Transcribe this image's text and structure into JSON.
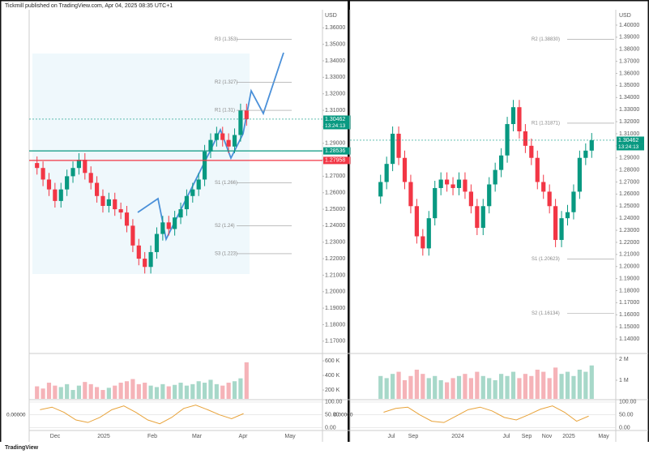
{
  "header": {
    "text": "Tickmill published on TradingView.com, Apr 04, 2025 08:35 UTC+1"
  },
  "footer": {
    "logo": "TradingView"
  },
  "chart_data": [
    {
      "type": "candlestick",
      "currency": "USD",
      "up_color": "#089981",
      "down_color": "#f23645",
      "open": [
        1.278,
        1.275,
        1.268,
        1.262,
        1.255,
        1.262,
        1.27,
        1.275,
        1.28,
        1.272,
        1.266,
        1.258,
        1.252,
        1.256,
        1.25,
        1.248,
        1.24,
        1.228,
        1.22,
        1.215,
        1.224,
        1.235,
        1.242,
        1.238,
        1.245,
        1.25,
        1.258,
        1.262,
        1.268,
        1.285,
        1.292,
        1.296,
        1.292,
        1.288,
        1.295,
        1.31
      ],
      "high": [
        1.282,
        1.279,
        1.272,
        1.266,
        1.266,
        1.274,
        1.279,
        1.284,
        1.284,
        1.276,
        1.27,
        1.262,
        1.26,
        1.26,
        1.254,
        1.252,
        1.244,
        1.232,
        1.224,
        1.228,
        1.239,
        1.246,
        1.246,
        1.249,
        1.254,
        1.262,
        1.266,
        1.272,
        1.289,
        1.296,
        1.3,
        1.3,
        1.296,
        1.299,
        1.314,
        1.314
      ],
      "low": [
        1.271,
        1.264,
        1.258,
        1.251,
        1.251,
        1.258,
        1.266,
        1.271,
        1.268,
        1.262,
        1.254,
        1.248,
        1.248,
        1.246,
        1.244,
        1.236,
        1.224,
        1.216,
        1.211,
        1.211,
        1.22,
        1.231,
        1.234,
        1.234,
        1.241,
        1.246,
        1.254,
        1.258,
        1.264,
        1.281,
        1.288,
        1.288,
        1.284,
        1.284,
        1.291,
        1.3006
      ],
      "close": [
        1.275,
        1.268,
        1.262,
        1.255,
        1.262,
        1.27,
        1.275,
        1.28,
        1.272,
        1.266,
        1.258,
        1.252,
        1.256,
        1.25,
        1.248,
        1.24,
        1.228,
        1.22,
        1.215,
        1.224,
        1.235,
        1.242,
        1.238,
        1.245,
        1.25,
        1.258,
        1.262,
        1.268,
        1.285,
        1.292,
        1.296,
        1.292,
        1.288,
        1.295,
        1.31,
        1.3046
      ],
      "ylim": [
        1.163,
        1.37
      ],
      "yticks": [
        {
          "value": 1.17,
          "label": "1.17000"
        },
        {
          "value": 1.18,
          "label": "1.18000"
        },
        {
          "value": 1.19,
          "label": "1.19000"
        },
        {
          "value": 1.2,
          "label": "1.20000"
        },
        {
          "value": 1.21,
          "label": "1.21000"
        },
        {
          "value": 1.22,
          "label": "1.22000"
        },
        {
          "value": 1.23,
          "label": "1.23000"
        },
        {
          "value": 1.24,
          "label": "1.24000"
        },
        {
          "value": 1.25,
          "label": "1.25000"
        },
        {
          "value": 1.26,
          "label": "1.26000"
        },
        {
          "value": 1.27,
          "label": "1.27000"
        },
        {
          "value": 1.28,
          "label": "1.28000"
        },
        {
          "value": 1.29,
          "label": "1.29000"
        },
        {
          "value": 1.3,
          "label": "1.30000"
        },
        {
          "value": 1.31,
          "label": "1.31000"
        },
        {
          "value": 1.32,
          "label": "1.32000"
        },
        {
          "value": 1.33,
          "label": "1.33000"
        },
        {
          "value": 1.34,
          "label": "1.34000"
        },
        {
          "value": 1.35,
          "label": "1.35000"
        },
        {
          "value": 1.36,
          "label": "1.36000"
        }
      ],
      "x_labels": [
        "Dec",
        "2025",
        "Feb",
        "Mar",
        "Apr",
        "May"
      ],
      "levels": [
        {
          "label": "R3 (1.353)",
          "value": 1.353
        },
        {
          "label": "R2 (1.327)",
          "value": 1.327
        },
        {
          "label": "R1 (1.31)",
          "value": 1.31
        },
        {
          "label": "S1 (1.266)",
          "value": 1.266
        },
        {
          "label": "S2 (1.24)",
          "value": 1.24
        },
        {
          "label": "S3 (1.223)",
          "value": 1.223
        }
      ],
      "price_tags": [
        {
          "value": 1.30462,
          "color": "#089981"
        },
        {
          "value": 1.28536,
          "color": "#089981"
        },
        {
          "value": 1.27958,
          "color": "#f23645"
        }
      ],
      "countdown": "13:24:13",
      "volume": {
        "values": [
          250000,
          220000,
          300000,
          260000,
          240000,
          280000,
          200000,
          260000,
          310000,
          280000,
          240000,
          200000,
          230000,
          260000,
          300000,
          320000,
          350000,
          280000,
          300000,
          260000,
          240000,
          280000,
          250000,
          270000,
          300000,
          260000,
          280000,
          320000,
          300000,
          340000,
          280000,
          260000,
          300000,
          320000,
          360000,
          580000
        ],
        "ylim": [
          78000,
          690000
        ],
        "yticks": [
          {
            "value": 200000,
            "label": "200 K"
          },
          {
            "value": 400000,
            "label": "400 K"
          },
          {
            "value": 600000,
            "label": "600 K"
          }
        ]
      },
      "oscillator": {
        "values": [
          70,
          80,
          60,
          30,
          20,
          40,
          70,
          85,
          60,
          30,
          15,
          40,
          75,
          88,
          70,
          50,
          35,
          55
        ],
        "color": "#e8a33a",
        "ylim": [
          -8,
          106
        ],
        "yticks": [
          {
            "value": 0,
            "label": "0.00"
          },
          {
            "value": 50,
            "label": "50.00"
          },
          {
            "value": 100,
            "label": "100.00"
          }
        ],
        "readout": "0.00000"
      }
    },
    {
      "type": "candlestick",
      "currency": "USD",
      "up_color": "#089981",
      "down_color": "#f23645",
      "open": [
        1.258,
        1.27,
        1.285,
        1.31,
        1.29,
        1.27,
        1.25,
        1.225,
        1.215,
        1.24,
        1.265,
        1.272,
        1.268,
        1.265,
        1.272,
        1.262,
        1.25,
        1.232,
        1.25,
        1.268,
        1.28,
        1.292,
        1.318,
        1.332,
        1.312,
        1.3,
        1.29,
        1.27,
        1.262,
        1.25,
        1.222,
        1.24,
        1.245,
        1.262,
        1.29,
        1.296
      ],
      "high": [
        1.276,
        1.291,
        1.316,
        1.316,
        1.296,
        1.276,
        1.256,
        1.231,
        1.246,
        1.271,
        1.278,
        1.278,
        1.274,
        1.278,
        1.278,
        1.268,
        1.256,
        1.256,
        1.274,
        1.286,
        1.298,
        1.324,
        1.338,
        1.338,
        1.318,
        1.306,
        1.296,
        1.276,
        1.268,
        1.256,
        1.246,
        1.251,
        1.268,
        1.296,
        1.302,
        1.3106
      ],
      "low": [
        1.252,
        1.264,
        1.279,
        1.284,
        1.264,
        1.244,
        1.219,
        1.209,
        1.209,
        1.234,
        1.259,
        1.262,
        1.259,
        1.259,
        1.256,
        1.244,
        1.226,
        1.226,
        1.244,
        1.262,
        1.274,
        1.286,
        1.312,
        1.306,
        1.294,
        1.284,
        1.264,
        1.256,
        1.244,
        1.216,
        1.216,
        1.234,
        1.239,
        1.256,
        1.284,
        1.29
      ],
      "close": [
        1.27,
        1.285,
        1.31,
        1.29,
        1.27,
        1.25,
        1.225,
        1.215,
        1.24,
        1.265,
        1.272,
        1.268,
        1.265,
        1.272,
        1.262,
        1.25,
        1.232,
        1.25,
        1.268,
        1.28,
        1.292,
        1.318,
        1.332,
        1.312,
        1.3,
        1.29,
        1.27,
        1.262,
        1.25,
        1.222,
        1.24,
        1.245,
        1.262,
        1.29,
        1.296,
        1.3046
      ],
      "ylim": [
        1.1286,
        1.4114
      ],
      "yticks": [
        {
          "value": 1.14,
          "label": "1.14000"
        },
        {
          "value": 1.15,
          "label": "1.15000"
        },
        {
          "value": 1.16,
          "label": "1.16000"
        },
        {
          "value": 1.17,
          "label": "1.17000"
        },
        {
          "value": 1.18,
          "label": "1.18000"
        },
        {
          "value": 1.19,
          "label": "1.19000"
        },
        {
          "value": 1.2,
          "label": "1.20000"
        },
        {
          "value": 1.21,
          "label": "1.21000"
        },
        {
          "value": 1.22,
          "label": "1.22000"
        },
        {
          "value": 1.23,
          "label": "1.23000"
        },
        {
          "value": 1.24,
          "label": "1.24000"
        },
        {
          "value": 1.25,
          "label": "1.25000"
        },
        {
          "value": 1.26,
          "label": "1.26000"
        },
        {
          "value": 1.27,
          "label": "1.27000"
        },
        {
          "value": 1.28,
          "label": "1.28000"
        },
        {
          "value": 1.29,
          "label": "1.29000"
        },
        {
          "value": 1.3,
          "label": "1.30000"
        },
        {
          "value": 1.31,
          "label": "1.31000"
        },
        {
          "value": 1.32,
          "label": "1.32000"
        },
        {
          "value": 1.33,
          "label": "1.33000"
        },
        {
          "value": 1.34,
          "label": "1.34000"
        },
        {
          "value": 1.35,
          "label": "1.35000"
        },
        {
          "value": 1.36,
          "label": "1.36000"
        },
        {
          "value": 1.37,
          "label": "1.37000"
        },
        {
          "value": 1.38,
          "label": "1.38000"
        },
        {
          "value": 1.39,
          "label": "1.39000"
        },
        {
          "value": 1.4,
          "label": "1.40000"
        }
      ],
      "x_labels": [
        "Jul",
        "Sep",
        "2024",
        "Jul",
        "Sep",
        "Nov",
        "2025",
        "May"
      ],
      "levels": [
        {
          "label": "R2 (1.38830)",
          "value": 1.3883
        },
        {
          "label": "R1 (1.31871)",
          "value": 1.31871
        },
        {
          "label": "S1 (1.20623)",
          "value": 1.20623
        },
        {
          "label": "S2 (1.16134)",
          "value": 1.16134
        }
      ],
      "price_tags": [
        {
          "value": 1.30462,
          "color": "#089981"
        }
      ],
      "countdown": "13:24:13",
      "volume": {
        "values": [
          1200000,
          1100000,
          1300000,
          1400000,
          1000000,
          1200000,
          1500000,
          1300000,
          1100000,
          1200000,
          1000000,
          900000,
          1100000,
          1200000,
          1300000,
          1100000,
          1400000,
          1200000,
          1100000,
          1000000,
          1300000,
          1200000,
          1400000,
          1100000,
          1300000,
          1200000,
          1500000,
          1400000,
          1100000,
          1600000,
          1300000,
          1400000,
          1200000,
          1500000,
          1400000,
          1700000
        ],
        "ylim": [
          115000,
          2230000
        ],
        "yticks": [
          {
            "value": 1000000,
            "label": "1 M"
          },
          {
            "value": 2000000,
            "label": "2 M"
          }
        ]
      },
      "oscillator": {
        "values": [
          60,
          75,
          80,
          50,
          25,
          20,
          45,
          70,
          80,
          65,
          40,
          30,
          50,
          72,
          85,
          60,
          25,
          45
        ],
        "color": "#e8a33a",
        "ylim": [
          -8,
          106
        ],
        "yticks": [
          {
            "value": 0,
            "label": "0.00"
          },
          {
            "value": 50,
            "label": "50.00"
          },
          {
            "value": 100,
            "label": "100.00"
          }
        ],
        "readout": "0.00000"
      }
    }
  ]
}
